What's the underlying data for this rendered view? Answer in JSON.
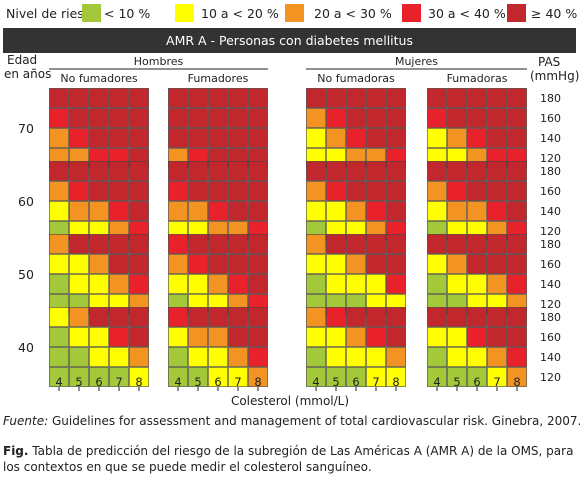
{
  "legend": {
    "title": "Nivel de riesgo",
    "items": [
      {
        "label": "< 10 %",
        "color": "#a3c93a"
      },
      {
        "label": "10 a < 20 %",
        "color": "#ffff00"
      },
      {
        "label": "20 a < 30 %",
        "color": "#f39322"
      },
      {
        "label": "30 a < 40 %",
        "color": "#e8212b"
      },
      {
        "label": "≥ 40 %",
        "color": "#c1272d"
      }
    ]
  },
  "title": "AMR A - Personas con diabetes mellitus",
  "source": {
    "label": "Fuente:",
    "text": " Guidelines for assessment and management of total cardiovascular risk. Ginebra, 2007."
  },
  "caption": {
    "label": "Fig.",
    "text": " Tabla de predicción del riesgo de la subregión de Las Américas A (AMR A) de la OMS, para los contextos en que se puede medir el colesterol sanguíneo."
  },
  "chart_data": {
    "type": "heatmap",
    "title": "AMR A - Personas con diabetes mellitus",
    "xlabel": "Colesterol (mmol/L)",
    "ylabel_left": "Edad en años",
    "ylabel_right": "PAS (mmHg)",
    "sexes": [
      "Hombres",
      "Mujeres"
    ],
    "smoking": [
      [
        "No fumadores",
        "Fumadores"
      ],
      [
        "No fumadoras",
        "Fumadoras"
      ]
    ],
    "ages": [
      "70",
      "60",
      "50",
      "40"
    ],
    "sbp": [
      "180",
      "160",
      "140",
      "120"
    ],
    "cholesterol": [
      "4",
      "5",
      "6",
      "7",
      "8"
    ],
    "level_labels": [
      "< 10 %",
      "10 a < 20 %",
      "20 a < 30 %",
      "30 a < 40 %",
      "≥ 40 %"
    ],
    "level_colors": [
      "#a3c93a",
      "#ffff00",
      "#f39322",
      "#e8212b",
      "#c1272d"
    ],
    "grids": [
      [
        [
          [
            4,
            4,
            4,
            4,
            4
          ],
          [
            3,
            4,
            4,
            4,
            4
          ],
          [
            2,
            3,
            4,
            4,
            4
          ],
          [
            2,
            2,
            3,
            3,
            4
          ]
        ],
        [
          [
            4,
            4,
            4,
            4,
            4
          ],
          [
            4,
            4,
            4,
            4,
            4
          ],
          [
            4,
            4,
            4,
            4,
            4
          ],
          [
            2,
            3,
            4,
            4,
            4
          ]
        ],
        [
          [
            4,
            4,
            4,
            4,
            4
          ],
          [
            2,
            3,
            4,
            4,
            4
          ],
          [
            1,
            2,
            3,
            4,
            4
          ],
          [
            1,
            1,
            2,
            2,
            3
          ]
        ],
        [
          [
            4,
            4,
            4,
            4,
            4
          ],
          [
            3,
            4,
            4,
            4,
            4
          ],
          [
            1,
            2,
            3,
            4,
            4
          ],
          [
            1,
            1,
            2,
            3,
            3
          ]
        ]
      ],
      [
        [
          [
            4,
            4,
            4,
            4,
            4
          ],
          [
            2,
            3,
            4,
            4,
            4
          ],
          [
            1,
            2,
            2,
            3,
            4
          ],
          [
            0,
            1,
            1,
            2,
            3
          ]
        ],
        [
          [
            4,
            4,
            4,
            4,
            4
          ],
          [
            3,
            4,
            4,
            4,
            4
          ],
          [
            2,
            2,
            3,
            4,
            4
          ],
          [
            1,
            1,
            2,
            2,
            3
          ]
        ],
        [
          [
            4,
            4,
            4,
            4,
            4
          ],
          [
            2,
            3,
            4,
            4,
            4
          ],
          [
            1,
            1,
            2,
            3,
            4
          ],
          [
            0,
            1,
            1,
            2,
            3
          ]
        ],
        [
          [
            4,
            4,
            4,
            4,
            4
          ],
          [
            2,
            3,
            4,
            4,
            4
          ],
          [
            1,
            2,
            2,
            3,
            4
          ],
          [
            0,
            1,
            1,
            2,
            3
          ]
        ]
      ],
      [
        [
          [
            2,
            4,
            4,
            4,
            4
          ],
          [
            1,
            1,
            2,
            4,
            4
          ],
          [
            0,
            1,
            1,
            2,
            3
          ],
          [
            0,
            0,
            1,
            1,
            2
          ]
        ],
        [
          [
            3,
            4,
            4,
            4,
            4
          ],
          [
            2,
            3,
            4,
            4,
            4
          ],
          [
            1,
            1,
            2,
            3,
            4
          ],
          [
            0,
            1,
            1,
            2,
            3
          ]
        ],
        [
          [
            2,
            4,
            4,
            4,
            4
          ],
          [
            1,
            1,
            2,
            4,
            4
          ],
          [
            0,
            1,
            1,
            1,
            3
          ],
          [
            0,
            0,
            0,
            1,
            1
          ]
        ],
        [
          [
            4,
            4,
            4,
            4,
            4
          ],
          [
            1,
            2,
            4,
            4,
            4
          ],
          [
            0,
            1,
            1,
            2,
            3
          ],
          [
            0,
            0,
            1,
            1,
            2
          ]
        ]
      ],
      [
        [
          [
            1,
            2,
            4,
            4,
            4
          ],
          [
            0,
            1,
            1,
            3,
            4
          ],
          [
            0,
            0,
            1,
            1,
            2
          ],
          [
            0,
            0,
            0,
            0,
            1
          ]
        ],
        [
          [
            3,
            4,
            4,
            4,
            4
          ],
          [
            1,
            2,
            2,
            4,
            4
          ],
          [
            0,
            1,
            1,
            2,
            3
          ],
          [
            0,
            0,
            1,
            1,
            2
          ]
        ],
        [
          [
            2,
            3,
            4,
            4,
            4
          ],
          [
            1,
            1,
            2,
            3,
            4
          ],
          [
            0,
            1,
            1,
            1,
            2
          ],
          [
            0,
            0,
            0,
            1,
            1
          ]
        ],
        [
          [
            4,
            4,
            4,
            4,
            4
          ],
          [
            1,
            1,
            3,
            4,
            4
          ],
          [
            0,
            1,
            1,
            2,
            3
          ],
          [
            0,
            0,
            0,
            1,
            2
          ]
        ]
      ]
    ]
  }
}
